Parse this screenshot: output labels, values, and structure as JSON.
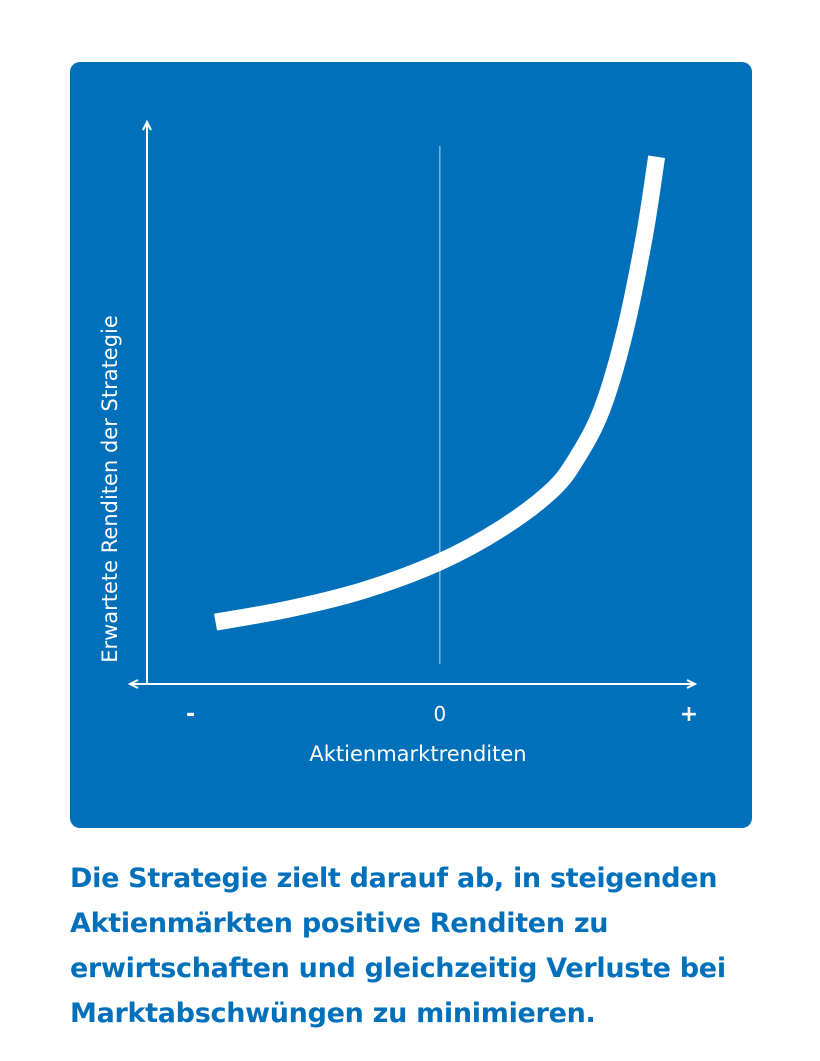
{
  "colors": {
    "panel_background": "#0170BB",
    "foreground": "#FFFFFF",
    "caption_text": "#0170BB",
    "center_line": "#7FB2DA"
  },
  "chart_data": {
    "type": "line",
    "xlabel": "Aktienmarktrenditen",
    "ylabel": "Erwartete Renditen der Strategie",
    "x_ticks": [
      {
        "label": "-",
        "value": -1
      },
      {
        "label": "0",
        "value": 0
      },
      {
        "label": "+",
        "value": 1
      }
    ],
    "xlim": [
      -1.175,
      1.012
    ],
    "ylim": [
      0,
      1.0
    ],
    "vertical_reference_line_at_x": 0,
    "grid": false,
    "legend": "none",
    "series": [
      {
        "points": [
          {
            "x": -0.9,
            "y": 0.115
          },
          {
            "x": -0.6,
            "y": 0.14
          },
          {
            "x": -0.3,
            "y": 0.175
          },
          {
            "x": 0.0,
            "y": 0.227
          },
          {
            "x": 0.25,
            "y": 0.29
          },
          {
            "x": 0.45,
            "y": 0.36
          },
          {
            "x": 0.55,
            "y": 0.42
          },
          {
            "x": 0.65,
            "y": 0.51
          },
          {
            "x": 0.74,
            "y": 0.65
          },
          {
            "x": 0.82,
            "y": 0.83
          },
          {
            "x": 0.87,
            "y": 0.98
          }
        ]
      }
    ]
  },
  "caption": {
    "text": "Die Strategie zielt darauf ab, in steigenden Aktienmärkten positive Renditen zu erwirtschaften und gleichzeitig Verluste bei Marktabschwüngen zu minimieren."
  }
}
